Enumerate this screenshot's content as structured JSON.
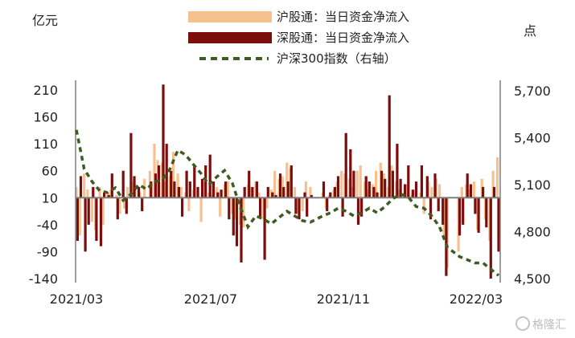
{
  "chart_data": {
    "type": "bar+line",
    "left_axis_title": "亿元",
    "right_axis_title": "点",
    "left_ticks": [
      210,
      160,
      110,
      60,
      10,
      -40,
      -90,
      -140
    ],
    "left_tick_labels": [
      "210",
      "160",
      "110",
      "60",
      "10",
      "-40",
      "-90",
      "-140"
    ],
    "ylim_left": [
      -140,
      240
    ],
    "right_ticks": [
      5700,
      5400,
      5100,
      4800,
      4500
    ],
    "right_tick_labels": [
      "5,700",
      "5,400",
      "5,100",
      "4,800",
      "4,500"
    ],
    "ylim_right": [
      4500,
      5800
    ],
    "x_tick_labels": [
      "2021/03",
      "2021/07",
      "2021/11",
      "2022/03"
    ],
    "x_start": "2021-03-01",
    "x_end": "2022-03-15",
    "legend": [
      {
        "name": "沪股通：当日资金净流入",
        "kind": "bar",
        "color": "#f7c08f"
      },
      {
        "name": "深股通：当日资金净流入",
        "kind": "bar",
        "color": "#7b0d0d"
      },
      {
        "name": "沪深300指数（右轴）",
        "kind": "dash",
        "color": "#3e5b22"
      }
    ],
    "series": [
      {
        "name": "沪股通：当日资金净流入",
        "axis": "left",
        "color": "#f7c08f",
        "points": [
          [
            "2021-03-01",
            30
          ],
          [
            "2021-03-04",
            -60
          ],
          [
            "2021-03-08",
            55
          ],
          [
            "2021-03-11",
            25
          ],
          [
            "2021-03-15",
            -35
          ],
          [
            "2021-03-18",
            -50
          ],
          [
            "2021-03-22",
            30
          ],
          [
            "2021-03-25",
            -40
          ],
          [
            "2021-03-29",
            20
          ],
          [
            "2021-04-01",
            25
          ],
          [
            "2021-04-06",
            15
          ],
          [
            "2021-04-09",
            -20
          ],
          [
            "2021-04-13",
            -10
          ],
          [
            "2021-04-16",
            30
          ],
          [
            "2021-04-20",
            40
          ],
          [
            "2021-04-23",
            35
          ],
          [
            "2021-04-27",
            20
          ],
          [
            "2021-05-01",
            45
          ],
          [
            "2021-05-06",
            60
          ],
          [
            "2021-05-10",
            110
          ],
          [
            "2021-05-13",
            80
          ],
          [
            "2021-05-17",
            75
          ],
          [
            "2021-05-20",
            40
          ],
          [
            "2021-05-24",
            50
          ],
          [
            "2021-05-27",
            95
          ],
          [
            "2021-05-31",
            55
          ],
          [
            "2021-06-03",
            30
          ],
          [
            "2021-06-07",
            20
          ],
          [
            "2021-06-10",
            -15
          ],
          [
            "2021-06-14",
            25
          ],
          [
            "2021-06-17",
            10
          ],
          [
            "2021-06-21",
            -35
          ],
          [
            "2021-06-24",
            40
          ],
          [
            "2021-06-28",
            20
          ],
          [
            "2021-07-01",
            15
          ],
          [
            "2021-07-05",
            30
          ],
          [
            "2021-07-08",
            -25
          ],
          [
            "2021-07-12",
            35
          ],
          [
            "2021-07-15",
            40
          ],
          [
            "2021-07-19",
            -20
          ],
          [
            "2021-07-22",
            -30
          ],
          [
            "2021-07-26",
            -40
          ],
          [
            "2021-07-29",
            -45
          ],
          [
            "2021-08-02",
            35
          ],
          [
            "2021-08-05",
            30
          ],
          [
            "2021-08-09",
            40
          ],
          [
            "2021-08-12",
            20
          ],
          [
            "2021-08-16",
            -30
          ],
          [
            "2021-08-19",
            -10
          ],
          [
            "2021-08-23",
            25
          ],
          [
            "2021-08-26",
            60
          ],
          [
            "2021-08-30",
            45
          ],
          [
            "2021-09-02",
            50
          ],
          [
            "2021-09-06",
            75
          ],
          [
            "2021-09-09",
            65
          ],
          [
            "2021-09-13",
            30
          ],
          [
            "2021-09-16",
            -20
          ],
          [
            "2021-09-20",
            -15
          ],
          [
            "2021-09-23",
            40
          ],
          [
            "2021-09-27",
            30
          ],
          [
            "2021-10-08",
            20
          ],
          [
            "2021-10-11",
            -10
          ],
          [
            "2021-10-14",
            15
          ],
          [
            "2021-10-18",
            25
          ],
          [
            "2021-10-21",
            40
          ],
          [
            "2021-10-25",
            60
          ],
          [
            "2021-10-28",
            55
          ],
          [
            "2021-11-01",
            45
          ],
          [
            "2021-11-04",
            30
          ],
          [
            "2021-11-08",
            60
          ],
          [
            "2021-11-11",
            70
          ],
          [
            "2021-11-15",
            40
          ],
          [
            "2021-11-18",
            25
          ],
          [
            "2021-11-22",
            35
          ],
          [
            "2021-11-25",
            60
          ],
          [
            "2021-11-29",
            75
          ],
          [
            "2021-12-02",
            55
          ],
          [
            "2021-12-06",
            30
          ],
          [
            "2021-12-09",
            70
          ],
          [
            "2021-12-13",
            40
          ],
          [
            "2021-12-16",
            25
          ],
          [
            "2021-12-20",
            20
          ],
          [
            "2021-12-23",
            35
          ],
          [
            "2021-12-27",
            15
          ],
          [
            "2021-12-30",
            25
          ],
          [
            "2022-01-04",
            20
          ],
          [
            "2022-01-07",
            -20
          ],
          [
            "2022-01-11",
            40
          ],
          [
            "2022-01-14",
            30
          ],
          [
            "2022-01-18",
            45
          ],
          [
            "2022-01-21",
            35
          ],
          [
            "2022-01-25",
            -60
          ],
          [
            "2022-01-28",
            -120
          ],
          [
            "2022-02-07",
            -90
          ],
          [
            "2022-02-10",
            30
          ],
          [
            "2022-02-14",
            35
          ],
          [
            "2022-02-17",
            25
          ],
          [
            "2022-02-21",
            40
          ],
          [
            "2022-02-24",
            -50
          ],
          [
            "2022-02-28",
            45
          ],
          [
            "2022-03-03",
            -30
          ],
          [
            "2022-03-07",
            -70
          ],
          [
            "2022-03-10",
            60
          ],
          [
            "2022-03-14",
            85
          ]
        ]
      },
      {
        "name": "深股通：当日资金净流入",
        "axis": "left",
        "color": "#7b0d0d",
        "points": [
          [
            "2021-03-02",
            -70
          ],
          [
            "2021-03-05",
            50
          ],
          [
            "2021-03-09",
            -90
          ],
          [
            "2021-03-12",
            -40
          ],
          [
            "2021-03-16",
            30
          ],
          [
            "2021-03-19",
            -70
          ],
          [
            "2021-03-23",
            -80
          ],
          [
            "2021-03-26",
            20
          ],
          [
            "2021-03-30",
            15
          ],
          [
            "2021-04-02",
            55
          ],
          [
            "2021-04-07",
            -30
          ],
          [
            "2021-04-12",
            60
          ],
          [
            "2021-04-15",
            -20
          ],
          [
            "2021-04-19",
            130
          ],
          [
            "2021-04-22",
            50
          ],
          [
            "2021-04-26",
            30
          ],
          [
            "2021-04-29",
            -15
          ],
          [
            "2021-05-07",
            40
          ],
          [
            "2021-05-11",
            55
          ],
          [
            "2021-05-14",
            70
          ],
          [
            "2021-05-18",
            220
          ],
          [
            "2021-05-21",
            110
          ],
          [
            "2021-05-25",
            60
          ],
          [
            "2021-05-28",
            40
          ],
          [
            "2021-06-01",
            30
          ],
          [
            "2021-06-04",
            -25
          ],
          [
            "2021-06-08",
            60
          ],
          [
            "2021-06-11",
            40
          ],
          [
            "2021-06-15",
            70
          ],
          [
            "2021-06-18",
            30
          ],
          [
            "2021-06-22",
            45
          ],
          [
            "2021-06-25",
            70
          ],
          [
            "2021-06-29",
            90
          ],
          [
            "2021-07-02",
            40
          ],
          [
            "2021-07-06",
            20
          ],
          [
            "2021-07-09",
            25
          ],
          [
            "2021-07-13",
            40
          ],
          [
            "2021-07-16",
            -30
          ],
          [
            "2021-07-20",
            -60
          ],
          [
            "2021-07-23",
            -80
          ],
          [
            "2021-07-27",
            -110
          ],
          [
            "2021-07-30",
            30
          ],
          [
            "2021-08-03",
            60
          ],
          [
            "2021-08-06",
            30
          ],
          [
            "2021-08-10",
            40
          ],
          [
            "2021-08-13",
            -25
          ],
          [
            "2021-08-17",
            -105
          ],
          [
            "2021-08-20",
            30
          ],
          [
            "2021-08-24",
            20
          ],
          [
            "2021-08-27",
            15
          ],
          [
            "2021-08-31",
            55
          ],
          [
            "2021-09-03",
            30
          ],
          [
            "2021-09-07",
            40
          ],
          [
            "2021-09-10",
            70
          ],
          [
            "2021-09-14",
            -20
          ],
          [
            "2021-09-17",
            -30
          ],
          [
            "2021-09-22",
            20
          ],
          [
            "2021-09-24",
            -25
          ],
          [
            "2021-09-28",
            15
          ],
          [
            "2021-10-09",
            40
          ],
          [
            "2021-10-12",
            -15
          ],
          [
            "2021-10-15",
            20
          ],
          [
            "2021-10-19",
            30
          ],
          [
            "2021-10-22",
            50
          ],
          [
            "2021-10-26",
            -25
          ],
          [
            "2021-10-29",
            130
          ],
          [
            "2021-11-02",
            100
          ],
          [
            "2021-11-05",
            60
          ],
          [
            "2021-11-09",
            -40
          ],
          [
            "2021-11-12",
            -25
          ],
          [
            "2021-11-16",
            50
          ],
          [
            "2021-11-19",
            40
          ],
          [
            "2021-11-23",
            30
          ],
          [
            "2021-11-26",
            20
          ],
          [
            "2021-11-30",
            60
          ],
          [
            "2021-12-03",
            45
          ],
          [
            "2021-12-07",
            200
          ],
          [
            "2021-12-10",
            60
          ],
          [
            "2021-12-14",
            110
          ],
          [
            "2021-12-17",
            45
          ],
          [
            "2021-12-21",
            35
          ],
          [
            "2021-12-24",
            70
          ],
          [
            "2021-12-28",
            25
          ],
          [
            "2021-12-31",
            40
          ],
          [
            "2022-01-05",
            70
          ],
          [
            "2022-01-10",
            50
          ],
          [
            "2022-01-13",
            -30
          ],
          [
            "2022-01-17",
            55
          ],
          [
            "2022-01-20",
            -15
          ],
          [
            "2022-01-24",
            -40
          ],
          [
            "2022-01-27",
            -135
          ],
          [
            "2022-02-08",
            -60
          ],
          [
            "2022-02-11",
            -40
          ],
          [
            "2022-02-15",
            55
          ],
          [
            "2022-02-18",
            35
          ],
          [
            "2022-02-22",
            -20
          ],
          [
            "2022-02-25",
            -55
          ],
          [
            "2022-03-01",
            30
          ],
          [
            "2022-03-04",
            -45
          ],
          [
            "2022-03-08",
            -140
          ],
          [
            "2022-03-11",
            30
          ],
          [
            "2022-03-15",
            -90
          ]
        ]
      },
      {
        "name": "沪深300指数（右轴）",
        "axis": "right",
        "color": "#3e5b22",
        "points": [
          [
            "2021-03-01",
            5450
          ],
          [
            "2021-03-08",
            5200
          ],
          [
            "2021-03-15",
            5120
          ],
          [
            "2021-03-22",
            5060
          ],
          [
            "2021-03-29",
            5050
          ],
          [
            "2021-04-05",
            5080
          ],
          [
            "2021-04-12",
            5000
          ],
          [
            "2021-04-19",
            5040
          ],
          [
            "2021-04-26",
            5100
          ],
          [
            "2021-05-03",
            5070
          ],
          [
            "2021-05-10",
            5120
          ],
          [
            "2021-05-17",
            5130
          ],
          [
            "2021-05-24",
            5200
          ],
          [
            "2021-05-31",
            5320
          ],
          [
            "2021-06-07",
            5290
          ],
          [
            "2021-06-14",
            5230
          ],
          [
            "2021-06-21",
            5170
          ],
          [
            "2021-06-28",
            5100
          ],
          [
            "2021-07-05",
            5150
          ],
          [
            "2021-07-12",
            5190
          ],
          [
            "2021-07-19",
            5110
          ],
          [
            "2021-07-26",
            4960
          ],
          [
            "2021-08-02",
            4830
          ],
          [
            "2021-08-09",
            4900
          ],
          [
            "2021-08-16",
            4880
          ],
          [
            "2021-08-23",
            4850
          ],
          [
            "2021-08-30",
            4890
          ],
          [
            "2021-09-06",
            4930
          ],
          [
            "2021-09-13",
            4900
          ],
          [
            "2021-09-20",
            4870
          ],
          [
            "2021-09-27",
            4860
          ],
          [
            "2021-10-08",
            4900
          ],
          [
            "2021-10-15",
            4920
          ],
          [
            "2021-10-22",
            4950
          ],
          [
            "2021-10-29",
            4930
          ],
          [
            "2021-11-05",
            4900
          ],
          [
            "2021-11-12",
            4920
          ],
          [
            "2021-11-19",
            4950
          ],
          [
            "2021-11-26",
            4920
          ],
          [
            "2021-12-03",
            4960
          ],
          [
            "2021-12-10",
            5010
          ],
          [
            "2021-12-17",
            5040
          ],
          [
            "2021-12-24",
            5020
          ],
          [
            "2021-12-31",
            4960
          ],
          [
            "2022-01-07",
            4950
          ],
          [
            "2022-01-14",
            4900
          ],
          [
            "2022-01-21",
            4830
          ],
          [
            "2022-01-28",
            4700
          ],
          [
            "2022-02-08",
            4640
          ],
          [
            "2022-02-15",
            4620
          ],
          [
            "2022-02-22",
            4600
          ],
          [
            "2022-03-01",
            4600
          ],
          [
            "2022-03-08",
            4560
          ],
          [
            "2022-03-15",
            4520
          ]
        ]
      }
    ]
  },
  "watermark": "格隆汇"
}
